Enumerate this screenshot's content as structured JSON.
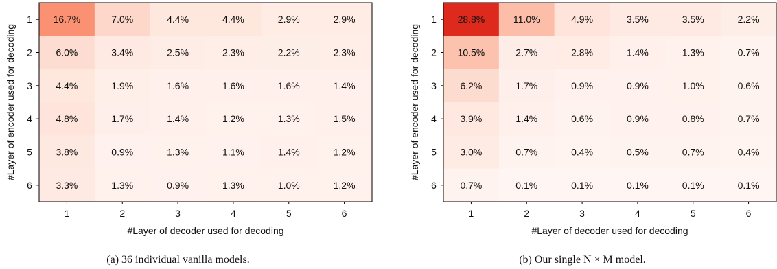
{
  "chart_data": [
    {
      "type": "heatmap",
      "caption": "(a) 36 individual vanilla models.",
      "xlabel": "#Layer of decoder used for decoding",
      "ylabel": "#Layer of encoder used for decoding",
      "x_ticks": [
        "1",
        "2",
        "3",
        "4",
        "5",
        "6"
      ],
      "y_ticks": [
        "1",
        "2",
        "3",
        "4",
        "5",
        "6"
      ],
      "values": [
        [
          16.7,
          7.0,
          4.4,
          4.4,
          2.9,
          2.9
        ],
        [
          6.0,
          3.4,
          2.5,
          2.3,
          2.2,
          2.3
        ],
        [
          4.4,
          1.9,
          1.6,
          1.6,
          1.6,
          1.4
        ],
        [
          4.8,
          1.7,
          1.4,
          1.2,
          1.3,
          1.5
        ],
        [
          3.8,
          0.9,
          1.3,
          1.1,
          1.4,
          1.2
        ],
        [
          3.3,
          1.3,
          0.9,
          1.3,
          1.0,
          1.2
        ]
      ],
      "labels": [
        [
          "16.7%",
          "7.0%",
          "4.4%",
          "4.4%",
          "2.9%",
          "2.9%"
        ],
        [
          "6.0%",
          "3.4%",
          "2.5%",
          "2.3%",
          "2.2%",
          "2.3%"
        ],
        [
          "4.4%",
          "1.9%",
          "1.6%",
          "1.6%",
          "1.6%",
          "1.4%"
        ],
        [
          "4.8%",
          "1.7%",
          "1.4%",
          "1.2%",
          "1.3%",
          "1.5%"
        ],
        [
          "3.8%",
          "0.9%",
          "1.3%",
          "1.1%",
          "1.4%",
          "1.2%"
        ],
        [
          "3.3%",
          "1.3%",
          "0.9%",
          "1.3%",
          "1.0%",
          "1.2%"
        ]
      ],
      "color_max_value": 28.8,
      "colormap": "Reds"
    },
    {
      "type": "heatmap",
      "caption": "(b) Our single N × M model.",
      "xlabel": "#Layer of decoder used for decoding",
      "ylabel": "#Layer of encoder used for decoding",
      "x_ticks": [
        "1",
        "2",
        "3",
        "4",
        "5",
        "6"
      ],
      "y_ticks": [
        "1",
        "2",
        "3",
        "4",
        "5",
        "6"
      ],
      "values": [
        [
          28.8,
          11.0,
          4.9,
          3.5,
          3.5,
          2.2
        ],
        [
          10.5,
          2.7,
          2.8,
          1.4,
          1.3,
          0.7
        ],
        [
          6.2,
          1.7,
          0.9,
          0.9,
          1.0,
          0.6
        ],
        [
          3.9,
          1.4,
          0.6,
          0.9,
          0.8,
          0.7
        ],
        [
          3.0,
          0.7,
          0.4,
          0.5,
          0.7,
          0.4
        ],
        [
          0.7,
          0.1,
          0.1,
          0.1,
          0.1,
          0.1
        ]
      ],
      "labels": [
        [
          "28.8%",
          "11.0%",
          "4.9%",
          "3.5%",
          "3.5%",
          "2.2%"
        ],
        [
          "10.5%",
          "2.7%",
          "2.8%",
          "1.4%",
          "1.3%",
          "0.7%"
        ],
        [
          "6.2%",
          "1.7%",
          "0.9%",
          "0.9%",
          "1.0%",
          "0.6%"
        ],
        [
          "3.9%",
          "1.4%",
          "0.6%",
          "0.9%",
          "0.8%",
          "0.7%"
        ],
        [
          "3.0%",
          "0.7%",
          "0.4%",
          "0.5%",
          "0.7%",
          "0.4%"
        ],
        [
          "0.7%",
          "0.1%",
          "0.1%",
          "0.1%",
          "0.1%",
          "0.1%"
        ]
      ],
      "color_max_value": 28.8,
      "colormap": "Reds"
    }
  ]
}
